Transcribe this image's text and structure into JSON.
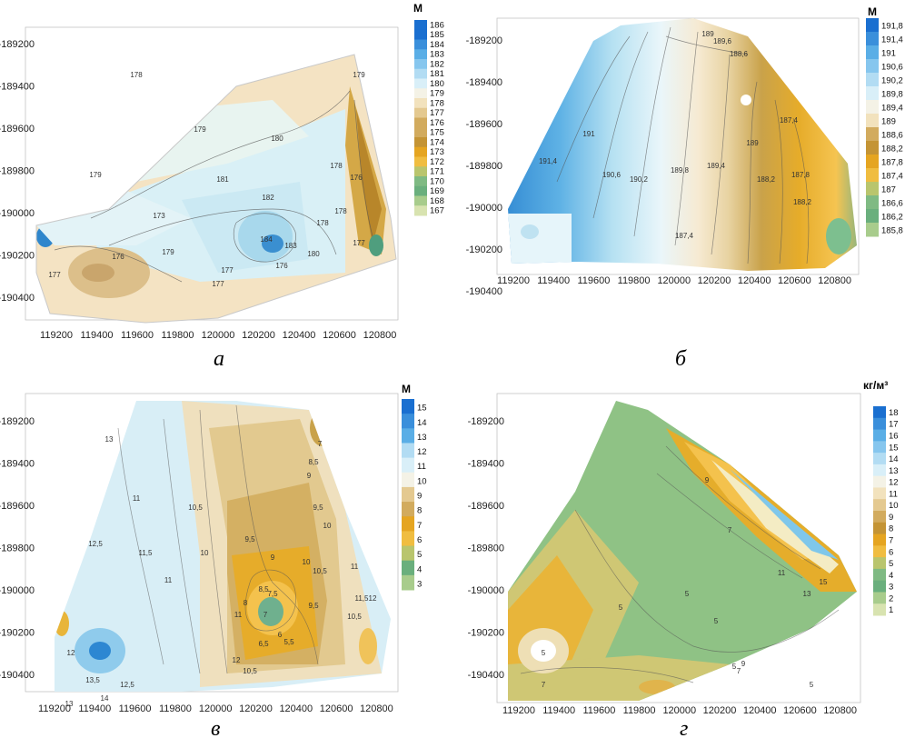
{
  "panels": [
    {
      "id": "a",
      "caption": "а",
      "unit": "М",
      "yticks": [
        "-189200",
        "-189400",
        "-189600",
        "-189800",
        "-190000",
        "-190200",
        "-190400"
      ],
      "xticks": [
        "119200",
        "119400",
        "119600",
        "119800",
        "120000",
        "120200",
        "120400",
        "120600",
        "120800"
      ],
      "legend": [
        "186",
        "185",
        "184",
        "183",
        "182",
        "181",
        "180",
        "179",
        "178",
        "177",
        "176",
        "175",
        "174",
        "173",
        "172",
        "171",
        "170",
        "169",
        "168",
        "167"
      ],
      "contour_labels": [
        "178",
        "179",
        "179",
        "180",
        "179",
        "181",
        "182",
        "184",
        "183",
        "180",
        "176",
        "177",
        "178",
        "178",
        "173",
        "177",
        "176",
        "179",
        "177",
        "178",
        "176",
        "177"
      ]
    },
    {
      "id": "b",
      "caption": "б",
      "unit": "М",
      "yticks": [
        "-189200",
        "-189400",
        "-189600",
        "-189800",
        "-190000",
        "-190200",
        "-190400"
      ],
      "xticks": [
        "119200",
        "119400",
        "119600",
        "119800",
        "120000",
        "120200",
        "120400",
        "120600",
        "120800"
      ],
      "legend": [
        "191,8",
        "191,4",
        "191",
        "190,6",
        "190,2",
        "189,8",
        "189,4",
        "189",
        "188,6",
        "188,2",
        "187,8",
        "187,4",
        "187",
        "186,6",
        "186,2",
        "185,8"
      ],
      "contour_labels": [
        "191,4",
        "191",
        "190,6",
        "190,2",
        "189,8",
        "189,4",
        "189",
        "188,2",
        "187,8",
        "187,4",
        "188,6",
        "189",
        "189,6",
        "188,2",
        "187,4"
      ]
    },
    {
      "id": "v",
      "caption": "в",
      "unit": "М",
      "yticks": [
        "-189200",
        "-189400",
        "-189600",
        "-189800",
        "-190000",
        "-190200",
        "-190400"
      ],
      "xticks": [
        "119200",
        "119400",
        "119600",
        "119800",
        "120000",
        "120200",
        "120400",
        "120600",
        "120800"
      ],
      "legend": [
        "15",
        "14",
        "13",
        "12",
        "11",
        "10",
        "9",
        "8",
        "7",
        "6",
        "5",
        "4",
        "3"
      ],
      "contour_labels": [
        "13",
        "11",
        "12,5",
        "11,5",
        "10,5",
        "11",
        "10",
        "9,5",
        "9",
        "8,5",
        "8",
        "7,5",
        "7",
        "6,5",
        "6",
        "5,5",
        "9,5",
        "10",
        "10,5",
        "11",
        "12",
        "13,5",
        "12,5",
        "14",
        "13",
        "12",
        "10,5",
        "9,5",
        "10",
        "9",
        "8,5",
        "7",
        "11",
        "10,5",
        "11,5",
        "12"
      ]
    },
    {
      "id": "g",
      "caption": "г",
      "unit": "кг/м³",
      "yticks": [
        "-189200",
        "-189400",
        "-189600",
        "-189800",
        "-190000",
        "-190200",
        "-190400"
      ],
      "xticks": [
        "119200",
        "119400",
        "119600",
        "119800",
        "120000",
        "120200",
        "120400",
        "120600",
        "120800"
      ],
      "legend": [
        "18",
        "17",
        "16",
        "15",
        "14",
        "13",
        "12",
        "11",
        "10",
        "9",
        "8",
        "7",
        "6",
        "5",
        "4",
        "3",
        "2",
        "1"
      ],
      "contour_labels": [
        "9",
        "7",
        "5",
        "11",
        "13",
        "15",
        "5",
        "5",
        "5",
        "5",
        "7",
        "9",
        "5",
        "7"
      ]
    }
  ]
}
